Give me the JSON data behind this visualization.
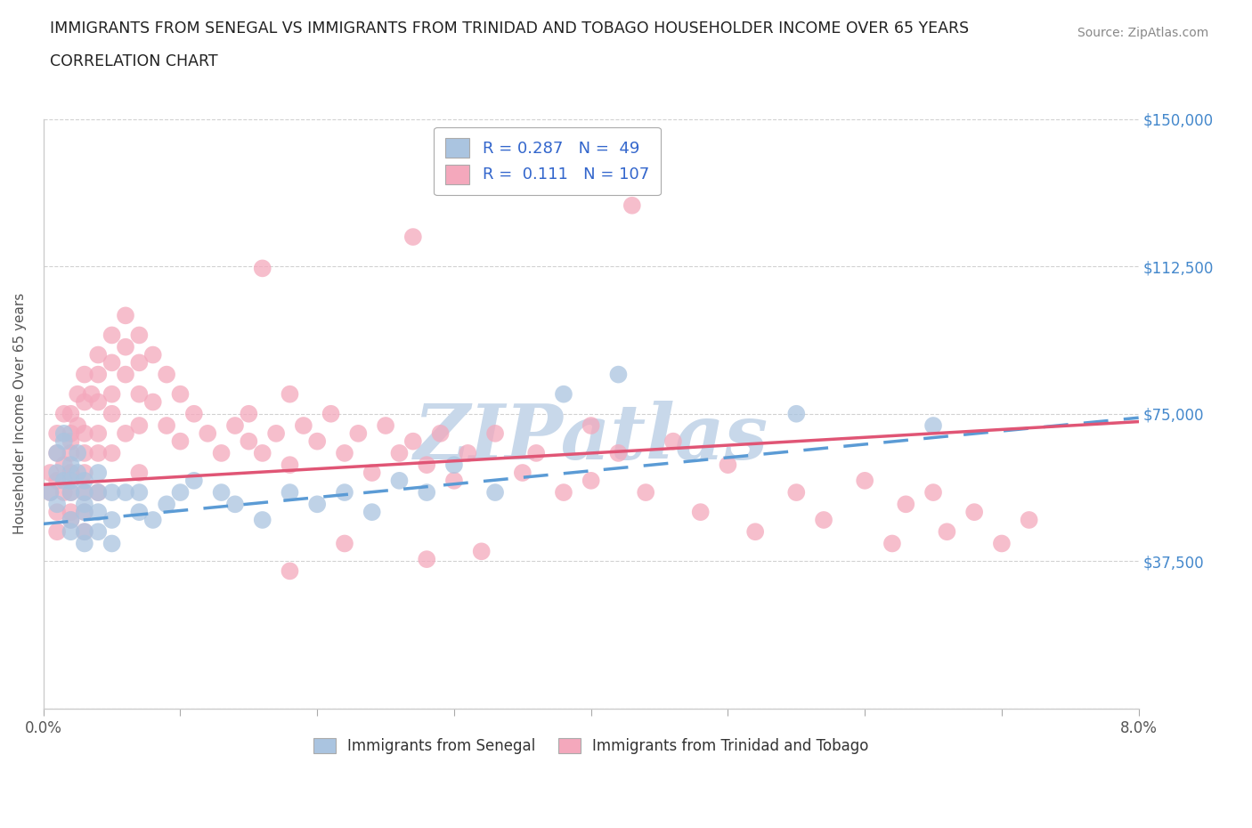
{
  "title_line1": "IMMIGRANTS FROM SENEGAL VS IMMIGRANTS FROM TRINIDAD AND TOBAGO HOUSEHOLDER INCOME OVER 65 YEARS",
  "title_line2": "CORRELATION CHART",
  "source_text": "Source: ZipAtlas.com",
  "ylabel": "Householder Income Over 65 years",
  "x_min": 0.0,
  "x_max": 0.08,
  "y_min": 0,
  "y_max": 150000,
  "y_ticks": [
    0,
    37500,
    75000,
    112500,
    150000
  ],
  "y_tick_labels": [
    "",
    "$37,500",
    "$75,000",
    "$112,500",
    "$150,000"
  ],
  "x_ticks": [
    0.0,
    0.01,
    0.02,
    0.03,
    0.04,
    0.05,
    0.06,
    0.07,
    0.08
  ],
  "x_tick_labels": [
    "0.0%",
    "",
    "",
    "",
    "",
    "",
    "",
    "",
    "8.0%"
  ],
  "senegal_color": "#aac4e0",
  "trinidad_color": "#f4a8bc",
  "senegal_line_color": "#5b9bd5",
  "trinidad_line_color": "#e05575",
  "title_color": "#333333",
  "axis_label_color": "#555555",
  "grid_color": "#cccccc",
  "watermark_color": "#c8d8ea",
  "R_senegal": 0.287,
  "N_senegal": 49,
  "R_trinidad": 0.111,
  "N_trinidad": 107,
  "senegal_line_x0": 0.0,
  "senegal_line_y0": 47000,
  "senegal_line_x1": 0.08,
  "senegal_line_y1": 74000,
  "trinidad_line_x0": 0.0,
  "trinidad_line_y0": 57000,
  "trinidad_line_x1": 0.08,
  "trinidad_line_y1": 73000,
  "senegal_x": [
    0.0005,
    0.001,
    0.001,
    0.001,
    0.0015,
    0.0015,
    0.0015,
    0.002,
    0.002,
    0.002,
    0.002,
    0.002,
    0.0025,
    0.0025,
    0.003,
    0.003,
    0.003,
    0.003,
    0.003,
    0.003,
    0.004,
    0.004,
    0.004,
    0.004,
    0.005,
    0.005,
    0.005,
    0.006,
    0.007,
    0.007,
    0.008,
    0.009,
    0.01,
    0.011,
    0.013,
    0.014,
    0.016,
    0.018,
    0.02,
    0.022,
    0.024,
    0.026,
    0.028,
    0.03,
    0.033,
    0.038,
    0.042,
    0.055,
    0.065
  ],
  "senegal_y": [
    55000,
    60000,
    52000,
    65000,
    58000,
    70000,
    68000,
    55000,
    62000,
    58000,
    48000,
    45000,
    65000,
    60000,
    55000,
    50000,
    45000,
    42000,
    58000,
    52000,
    60000,
    55000,
    50000,
    45000,
    55000,
    48000,
    42000,
    55000,
    55000,
    50000,
    48000,
    52000,
    55000,
    58000,
    55000,
    52000,
    48000,
    55000,
    52000,
    55000,
    50000,
    58000,
    55000,
    62000,
    55000,
    80000,
    85000,
    75000,
    72000
  ],
  "trinidad_x": [
    0.0005,
    0.0005,
    0.001,
    0.001,
    0.001,
    0.001,
    0.001,
    0.0015,
    0.0015,
    0.0015,
    0.002,
    0.002,
    0.002,
    0.002,
    0.002,
    0.002,
    0.002,
    0.002,
    0.0025,
    0.0025,
    0.003,
    0.003,
    0.003,
    0.003,
    0.003,
    0.003,
    0.003,
    0.003,
    0.0035,
    0.004,
    0.004,
    0.004,
    0.004,
    0.004,
    0.004,
    0.005,
    0.005,
    0.005,
    0.005,
    0.005,
    0.006,
    0.006,
    0.006,
    0.006,
    0.007,
    0.007,
    0.007,
    0.007,
    0.007,
    0.008,
    0.008,
    0.009,
    0.009,
    0.01,
    0.01,
    0.011,
    0.012,
    0.013,
    0.014,
    0.015,
    0.015,
    0.016,
    0.017,
    0.018,
    0.018,
    0.019,
    0.02,
    0.021,
    0.022,
    0.023,
    0.024,
    0.025,
    0.026,
    0.027,
    0.028,
    0.029,
    0.03,
    0.031,
    0.033,
    0.035,
    0.036,
    0.038,
    0.04,
    0.04,
    0.042,
    0.044,
    0.046,
    0.048,
    0.05,
    0.052,
    0.055,
    0.057,
    0.06,
    0.062,
    0.063,
    0.065,
    0.066,
    0.068,
    0.07,
    0.072,
    0.043,
    0.027,
    0.016,
    0.032,
    0.028,
    0.022,
    0.018
  ],
  "trinidad_y": [
    60000,
    55000,
    65000,
    58000,
    50000,
    70000,
    45000,
    62000,
    75000,
    55000,
    68000,
    60000,
    55000,
    48000,
    75000,
    70000,
    65000,
    50000,
    80000,
    72000,
    85000,
    78000,
    70000,
    65000,
    60000,
    55000,
    50000,
    45000,
    80000,
    90000,
    85000,
    78000,
    70000,
    65000,
    55000,
    95000,
    88000,
    80000,
    75000,
    65000,
    100000,
    92000,
    85000,
    70000,
    95000,
    88000,
    80000,
    72000,
    60000,
    90000,
    78000,
    85000,
    72000,
    80000,
    68000,
    75000,
    70000,
    65000,
    72000,
    68000,
    75000,
    65000,
    70000,
    62000,
    80000,
    72000,
    68000,
    75000,
    65000,
    70000,
    60000,
    72000,
    65000,
    68000,
    62000,
    70000,
    58000,
    65000,
    70000,
    60000,
    65000,
    55000,
    72000,
    58000,
    65000,
    55000,
    68000,
    50000,
    62000,
    45000,
    55000,
    48000,
    58000,
    42000,
    52000,
    55000,
    45000,
    50000,
    42000,
    48000,
    128000,
    120000,
    112000,
    40000,
    38000,
    42000,
    35000
  ]
}
